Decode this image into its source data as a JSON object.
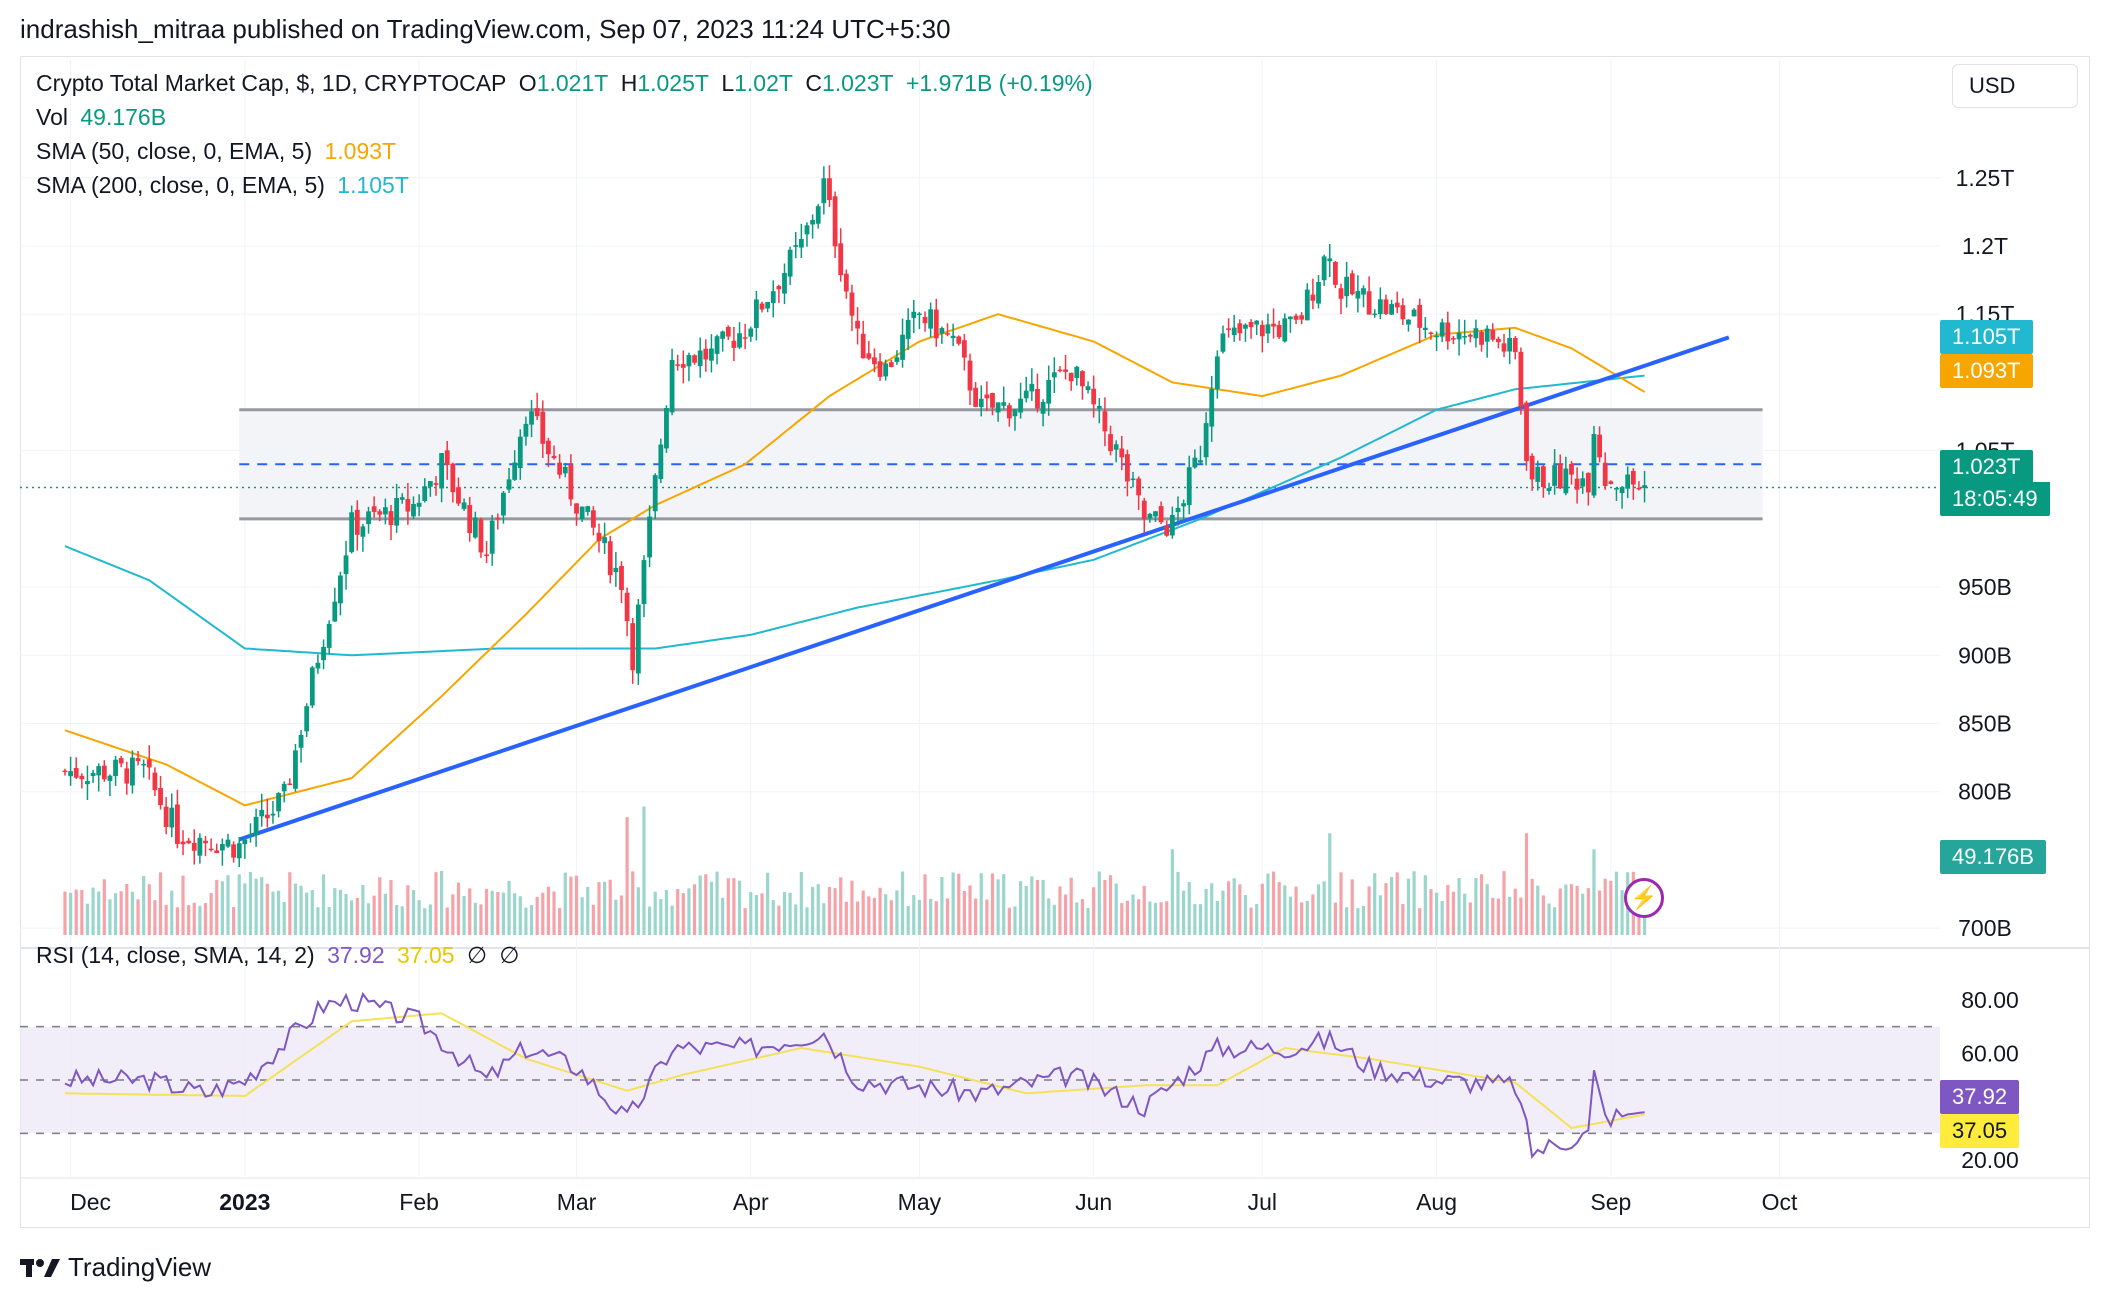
{
  "header": {
    "published_line": "indrashish_mitraa published on TradingView.com, Sep 07, 2023 11:24 UTC+5:30"
  },
  "legend": {
    "symbol": "Crypto Total Market Cap, $, 1D, CRYPTOCAP",
    "o_label": "O",
    "o_value": "1.021T",
    "h_label": "H",
    "h_value": "1.025T",
    "l_label": "L",
    "l_value": "1.02T",
    "c_label": "C",
    "c_value": "1.023T",
    "change": "+1.971B (+0.19%)",
    "vol_label": "Vol",
    "vol_value": "49.176B",
    "sma50_label": "SMA (50, close, 0, EMA, 5)",
    "sma50_value": "1.093T",
    "sma200_label": "SMA (200, close, 0, EMA, 5)",
    "sma200_value": "1.105T"
  },
  "rsi_legend": {
    "label": "RSI (14, close, SMA, 14, 2)",
    "rsi_value": "37.92",
    "sma_value": "37.05",
    "extra1": "∅",
    "extra2": "∅"
  },
  "currency": "USD",
  "price_labels": {
    "sma200": "1.105T",
    "sma50": "1.093T",
    "last": "1.023T",
    "countdown": "18:05:49",
    "volume": "49.176B",
    "rsi": "37.92",
    "rsi_sma": "37.05"
  },
  "colors": {
    "up": "#089981",
    "down": "#f23645",
    "sma50": "#f7a600",
    "sma200": "#22b8cf",
    "trendline": "#2962ff",
    "range": "#9598a1",
    "rsi": "#7e57c2",
    "rsi_sma": "#f5e05a",
    "vol_up": "#9ad6cc",
    "vol_down": "#f5a3a9"
  },
  "footer": {
    "brand": "TradingView"
  },
  "chart_data": {
    "type": "candlestick",
    "title": "Crypto Total Market Cap, $, 1D, CRYPTOCAP",
    "price_axis_ticks": [
      "1.25T",
      "1.2T",
      "1.15T",
      "1.05T",
      "950B",
      "900B",
      "850B",
      "800B",
      "700B"
    ],
    "rsi_axis_ticks": [
      "80.00",
      "60.00",
      "20.00"
    ],
    "time_axis_ticks": [
      "Dec",
      "2023",
      "Feb",
      "Mar",
      "Apr",
      "May",
      "Jun",
      "Jul",
      "Aug",
      "Sep",
      "Oct"
    ],
    "price_range_B": [
      695,
      1285
    ],
    "rsi_range": [
      20,
      80
    ],
    "close_anchors": [
      {
        "date": "2022-11-30",
        "price": 815
      },
      {
        "date": "2022-12-14",
        "price": 815
      },
      {
        "date": "2022-12-20",
        "price": 770
      },
      {
        "date": "2022-12-31",
        "price": 760
      },
      {
        "date": "2023-01-08",
        "price": 795
      },
      {
        "date": "2023-01-14",
        "price": 900
      },
      {
        "date": "2023-01-20",
        "price": 995
      },
      {
        "date": "2023-01-31",
        "price": 1010
      },
      {
        "date": "2023-02-05",
        "price": 1040
      },
      {
        "date": "2023-02-13",
        "price": 975
      },
      {
        "date": "2023-02-20",
        "price": 1080
      },
      {
        "date": "2023-02-28",
        "price": 1020
      },
      {
        "date": "2023-03-09",
        "price": 955
      },
      {
        "date": "2023-03-11",
        "price": 900
      },
      {
        "date": "2023-03-18",
        "price": 1120
      },
      {
        "date": "2023-03-25",
        "price": 1120
      },
      {
        "date": "2023-03-31",
        "price": 1140
      },
      {
        "date": "2023-04-10",
        "price": 1200
      },
      {
        "date": "2023-04-14",
        "price": 1245
      },
      {
        "date": "2023-04-20",
        "price": 1130
      },
      {
        "date": "2023-04-25",
        "price": 1110
      },
      {
        "date": "2023-05-01",
        "price": 1150
      },
      {
        "date": "2023-05-07",
        "price": 1130
      },
      {
        "date": "2023-05-12",
        "price": 1080
      },
      {
        "date": "2023-05-20",
        "price": 1085
      },
      {
        "date": "2023-05-28",
        "price": 1110
      },
      {
        "date": "2023-06-05",
        "price": 1050
      },
      {
        "date": "2023-06-10",
        "price": 1000
      },
      {
        "date": "2023-06-15",
        "price": 995
      },
      {
        "date": "2023-06-20",
        "price": 1050
      },
      {
        "date": "2023-06-23",
        "price": 1130
      },
      {
        "date": "2023-07-01",
        "price": 1140
      },
      {
        "date": "2023-07-07",
        "price": 1140
      },
      {
        "date": "2023-07-13",
        "price": 1200
      },
      {
        "date": "2023-07-14",
        "price": 1170
      },
      {
        "date": "2023-07-20",
        "price": 1160
      },
      {
        "date": "2023-07-31",
        "price": 1140
      },
      {
        "date": "2023-08-10",
        "price": 1135
      },
      {
        "date": "2023-08-15",
        "price": 1120
      },
      {
        "date": "2023-08-17",
        "price": 1050
      },
      {
        "date": "2023-08-18",
        "price": 1030
      },
      {
        "date": "2023-08-28",
        "price": 1030
      },
      {
        "date": "2023-08-29",
        "price": 1070
      },
      {
        "date": "2023-08-31",
        "price": 1030
      },
      {
        "date": "2023-09-07",
        "price": 1023
      }
    ],
    "sma50_anchors": [
      {
        "date": "2022-11-30",
        "price": 845
      },
      {
        "date": "2022-12-18",
        "price": 820
      },
      {
        "date": "2023-01-01",
        "price": 790
      },
      {
        "date": "2023-01-20",
        "price": 810
      },
      {
        "date": "2023-02-05",
        "price": 870
      },
      {
        "date": "2023-02-20",
        "price": 930
      },
      {
        "date": "2023-03-05",
        "price": 985
      },
      {
        "date": "2023-03-15",
        "price": 1010
      },
      {
        "date": "2023-03-31",
        "price": 1040
      },
      {
        "date": "2023-04-15",
        "price": 1090
      },
      {
        "date": "2023-05-01",
        "price": 1130
      },
      {
        "date": "2023-05-15",
        "price": 1150
      },
      {
        "date": "2023-06-01",
        "price": 1130
      },
      {
        "date": "2023-06-15",
        "price": 1100
      },
      {
        "date": "2023-07-01",
        "price": 1090
      },
      {
        "date": "2023-07-15",
        "price": 1105
      },
      {
        "date": "2023-08-01",
        "price": 1135
      },
      {
        "date": "2023-08-15",
        "price": 1140
      },
      {
        "date": "2023-08-25",
        "price": 1125
      },
      {
        "date": "2023-09-07",
        "price": 1093
      }
    ],
    "sma200_anchors": [
      {
        "date": "2022-11-30",
        "price": 980
      },
      {
        "date": "2022-12-15",
        "price": 955
      },
      {
        "date": "2023-01-01",
        "price": 905
      },
      {
        "date": "2023-01-20",
        "price": 900
      },
      {
        "date": "2023-02-15",
        "price": 905
      },
      {
        "date": "2023-03-15",
        "price": 905
      },
      {
        "date": "2023-04-01",
        "price": 915
      },
      {
        "date": "2023-04-20",
        "price": 935
      },
      {
        "date": "2023-05-15",
        "price": 955
      },
      {
        "date": "2023-06-01",
        "price": 970
      },
      {
        "date": "2023-06-20",
        "price": 1000
      },
      {
        "date": "2023-07-15",
        "price": 1045
      },
      {
        "date": "2023-08-01",
        "price": 1080
      },
      {
        "date": "2023-08-15",
        "price": 1095
      },
      {
        "date": "2023-09-07",
        "price": 1105
      }
    ],
    "rsi_anchors": [
      {
        "date": "2022-11-30",
        "value": 50
      },
      {
        "date": "2022-12-15",
        "value": 50
      },
      {
        "date": "2022-12-25",
        "value": 45
      },
      {
        "date": "2023-01-01",
        "value": 50
      },
      {
        "date": "2023-01-15",
        "value": 78
      },
      {
        "date": "2023-01-20",
        "value": 80
      },
      {
        "date": "2023-02-01",
        "value": 72
      },
      {
        "date": "2023-02-13",
        "value": 50
      },
      {
        "date": "2023-02-20",
        "value": 62
      },
      {
        "date": "2023-03-01",
        "value": 55
      },
      {
        "date": "2023-03-10",
        "value": 35
      },
      {
        "date": "2023-03-18",
        "value": 62
      },
      {
        "date": "2023-04-01",
        "value": 62
      },
      {
        "date": "2023-04-14",
        "value": 68
      },
      {
        "date": "2023-04-20",
        "value": 50
      },
      {
        "date": "2023-05-12",
        "value": 45
      },
      {
        "date": "2023-05-28",
        "value": 52
      },
      {
        "date": "2023-06-10",
        "value": 40
      },
      {
        "date": "2023-06-23",
        "value": 62
      },
      {
        "date": "2023-07-05",
        "value": 62
      },
      {
        "date": "2023-07-13",
        "value": 65
      },
      {
        "date": "2023-07-20",
        "value": 55
      },
      {
        "date": "2023-08-01",
        "value": 50
      },
      {
        "date": "2023-08-15",
        "value": 48
      },
      {
        "date": "2023-08-18",
        "value": 23
      },
      {
        "date": "2023-08-28",
        "value": 30
      },
      {
        "date": "2023-08-29",
        "value": 52
      },
      {
        "date": "2023-08-31",
        "value": 36
      },
      {
        "date": "2023-09-07",
        "value": 37.92
      }
    ],
    "rsi_sma_anchors": [
      {
        "date": "2022-11-30",
        "value": 45
      },
      {
        "date": "2023-01-01",
        "value": 44
      },
      {
        "date": "2023-01-20",
        "value": 72
      },
      {
        "date": "2023-02-05",
        "value": 75
      },
      {
        "date": "2023-02-20",
        "value": 58
      },
      {
        "date": "2023-03-10",
        "value": 46
      },
      {
        "date": "2023-03-20",
        "value": 52
      },
      {
        "date": "2023-04-10",
        "value": 62
      },
      {
        "date": "2023-05-01",
        "value": 55
      },
      {
        "date": "2023-05-20",
        "value": 45
      },
      {
        "date": "2023-06-10",
        "value": 48
      },
      {
        "date": "2023-06-23",
        "value": 48
      },
      {
        "date": "2023-07-05",
        "value": 62
      },
      {
        "date": "2023-07-20",
        "value": 58
      },
      {
        "date": "2023-08-15",
        "value": 49
      },
      {
        "date": "2023-08-25",
        "value": 32
      },
      {
        "date": "2023-09-07",
        "value": 37.05
      }
    ],
    "rsi_bands": [
      30,
      50,
      70
    ],
    "volume_B_range": [
      0,
      140
    ],
    "volume_spikes": [
      {
        "date": "2023-03-10",
        "value": 110
      },
      {
        "date": "2023-03-13",
        "value": 120
      },
      {
        "date": "2023-06-15",
        "value": 80
      },
      {
        "date": "2023-07-13",
        "value": 95
      },
      {
        "date": "2023-08-17",
        "value": 95
      },
      {
        "date": "2023-08-29",
        "value": 80
      }
    ],
    "trendline": [
      {
        "date": "2022-12-31",
        "price": 765
      },
      {
        "date": "2023-09-22",
        "price": 1133
      }
    ],
    "range_box": {
      "start": "2022-12-31",
      "end": "2023-09-28",
      "top": 1080,
      "mid": 1040,
      "bottom": 1000
    },
    "last_price": 1023
  }
}
